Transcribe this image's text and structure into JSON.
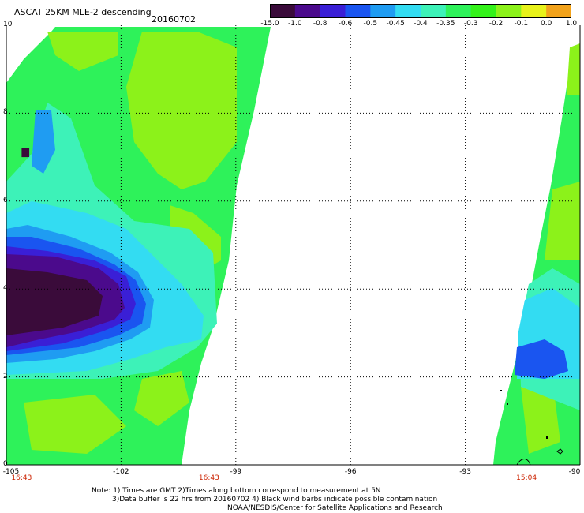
{
  "header": {
    "title": "ASCAT 25KM MLE-2 descending",
    "date": "20160702"
  },
  "colorbar": {
    "labels": [
      "-15.0",
      "-1.0",
      "-0.8",
      "-0.6",
      "-0.5",
      "-0.45",
      "-0.4",
      "-0.35",
      "-0.3",
      "-0.2",
      "-0.1",
      "0.0",
      "1.0"
    ],
    "colors": [
      "#3a0b3a",
      "#4b0a8c",
      "#3a1fd6",
      "#1a55f0",
      "#1f9cf2",
      "#33dcf2",
      "#3df2b8",
      "#2ef25a",
      "#34f21a",
      "#8cf21a",
      "#e8f21a",
      "#f2a21a",
      "#f24a1a"
    ]
  },
  "map": {
    "y_axis": [
      "10",
      "8",
      "6",
      "4",
      "2",
      "0"
    ],
    "x_axis": [
      "-105",
      "-102",
      "-99",
      "-96",
      "-93",
      "-90"
    ],
    "pass_times": [
      {
        "text": "16:43",
        "lon": -104.6
      },
      {
        "text": "16:43",
        "lon": -99.7
      },
      {
        "text": "15:04",
        "lon": -91.4
      }
    ]
  },
  "notes": {
    "line1": "Note: 1) Times are GMT 2)Times along bottom correspond to measurement at 5N",
    "line2": "3)Data buffer is 22 hrs from 20160702 4) Black wind barbs indicate possible contamination",
    "line3": "NOAA/NESDIS/Center for Satellite Applications and Research"
  }
}
